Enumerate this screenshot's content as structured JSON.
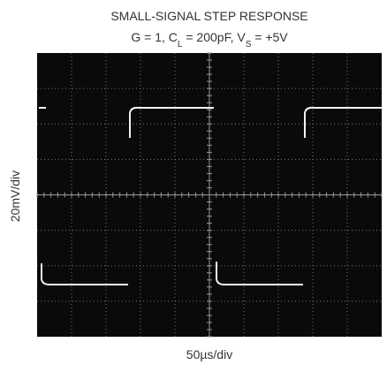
{
  "title": "SMALL-SIGNAL STEP RESPONSE",
  "subtitle_parts": [
    "G = 1, C",
    "L",
    " = 200pF, V",
    "S",
    " = +5V"
  ],
  "y_label": "20mV/div",
  "x_label": "50µs/div"
}
